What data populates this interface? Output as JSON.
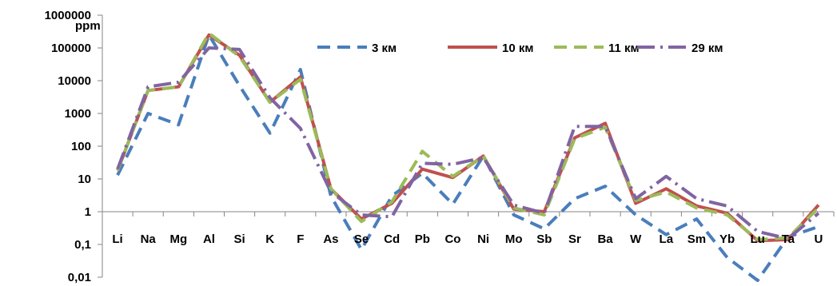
{
  "chart_data": {
    "type": "line",
    "ylabel": "ppm",
    "y_scale": "log",
    "ylim": [
      0.01,
      1000000
    ],
    "y_ticks": [
      "1000000",
      "100000",
      "10000",
      "1000",
      "100",
      "10",
      "1",
      "0,1",
      "0,01"
    ],
    "y_tick_values": [
      1000000,
      100000,
      10000,
      1000,
      100,
      10,
      1,
      0.1,
      0.01
    ],
    "categories": [
      "Li",
      "Na",
      "Mg",
      "Al",
      "Si",
      "K",
      "F",
      "As",
      "Se",
      "Cd",
      "Pb",
      "Co",
      "Ni",
      "Mo",
      "Sb",
      "Sr",
      "Ba",
      "W",
      "La",
      "Sm",
      "Yb",
      "Lu",
      "Ta",
      "U"
    ],
    "series": [
      {
        "name": "3 км",
        "color": "#4a7ebb",
        "dash": "long-dash",
        "values": [
          13,
          1000,
          450,
          250000,
          7000,
          250,
          22000,
          3,
          0.07,
          3,
          15,
          1.7,
          50,
          0.8,
          0.3,
          2.5,
          6,
          0.8,
          0.2,
          0.6,
          0.04,
          0.008,
          0.17,
          0.35
        ]
      },
      {
        "name": "10 км",
        "color": "#c0504d",
        "dash": "solid",
        "values": [
          18,
          5000,
          6500,
          250000,
          60000,
          2200,
          13000,
          5,
          0.6,
          1.8,
          20,
          11,
          50,
          1.2,
          1.0,
          180,
          500,
          1.8,
          5,
          1.5,
          0.9,
          0.13,
          0.14,
          1.6
        ]
      },
      {
        "name": "11 км",
        "color": "#9bbb59",
        "dash": "long-dash",
        "values": [
          18,
          5000,
          6500,
          280000,
          55000,
          2200,
          11000,
          5,
          0.5,
          2,
          70,
          12,
          50,
          1.3,
          0.8,
          170,
          380,
          2.2,
          4,
          1.3,
          0.8,
          0.14,
          0.16,
          1.3
        ]
      },
      {
        "name": "29 км",
        "color": "#8064a2",
        "dash": "dash-dot",
        "values": [
          20,
          6500,
          9000,
          100000,
          90000,
          3000,
          350,
          4,
          0.8,
          0.7,
          30,
          28,
          45,
          1.6,
          0.9,
          400,
          400,
          2.5,
          12,
          2.5,
          1.5,
          0.25,
          0.15,
          0.9
        ]
      }
    ]
  }
}
